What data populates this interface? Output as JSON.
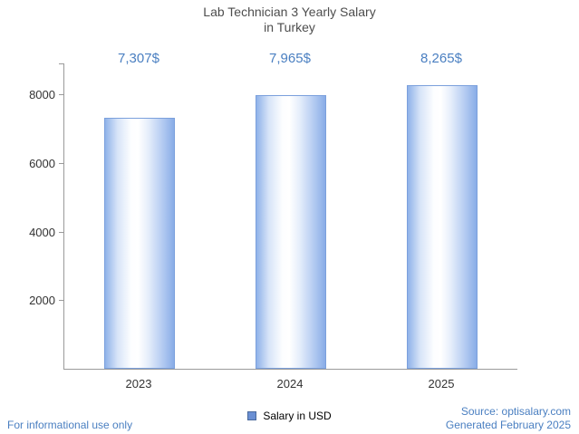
{
  "title": {
    "line1": "Lab Technician 3 Yearly Salary",
    "line2": "in Turkey"
  },
  "legend": {
    "label": "Salary in USD"
  },
  "footer": {
    "disclaimer": "For informational use only",
    "source": "Source: optisalary.com",
    "generated": "Generated February 2025"
  },
  "colors": {
    "accent_text": "#4a7fc1",
    "bar_edge": "#7ba0dc",
    "axis": "#9a9a9a",
    "legend_swatch": "#6a8fd3"
  },
  "chart_data": {
    "type": "bar",
    "title": "Lab Technician 3 Yearly Salary in Turkey",
    "categories": [
      "2023",
      "2024",
      "2025"
    ],
    "values": [
      7307,
      7965,
      8265
    ],
    "value_labels": [
      "7,307$",
      "7,965$",
      "8,265$"
    ],
    "series_name": "Salary in USD",
    "xlabel": "",
    "ylabel": "",
    "ylim": [
      0,
      8900
    ],
    "yticks": [
      2000,
      4000,
      6000,
      8000
    ],
    "grid": false,
    "legend_position": "bottom"
  }
}
